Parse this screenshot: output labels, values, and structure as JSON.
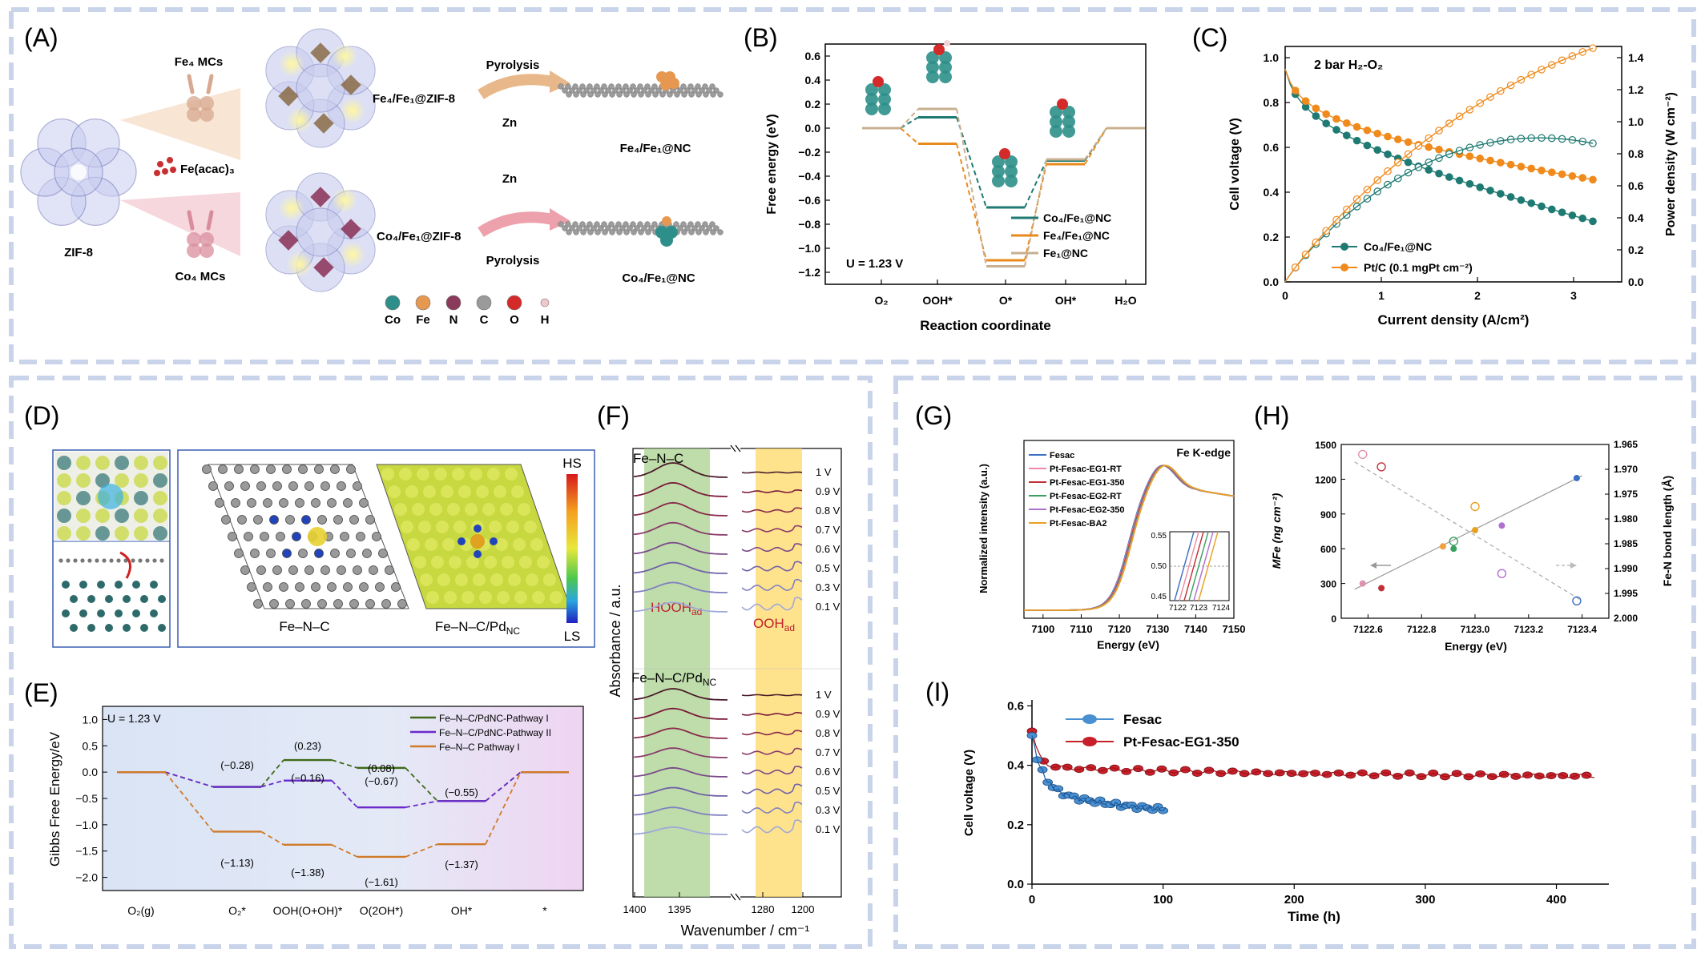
{
  "panels": [
    "(A)",
    "(B)",
    "(C)",
    "(D)",
    "(E)",
    "(F)",
    "(G)",
    "(H)",
    "(I)"
  ],
  "panelA": {
    "zif8": "ZIF-8",
    "fe4mcs": "Fe₄ MCs",
    "co4mcs": "Co₄ MCs",
    "feacac": "Fe(acac)₃",
    "fe4fe1zif": "Fe₄/Fe₁@ZIF-8",
    "co4fe1zif": "Co₄/Fe₁@ZIF-8",
    "pyrolysis": "Pyrolysis",
    "zn": "Zn",
    "fe4fe1nc": "Fe₄/Fe₁@NC",
    "co4fe1nc": "Co₄/Fe₁@NC",
    "legend": [
      {
        "label": "Co",
        "color": "#2e8f8a"
      },
      {
        "label": "Fe",
        "color": "#e69850"
      },
      {
        "label": "N",
        "color": "#8a3a5a"
      },
      {
        "label": "C",
        "color": "#9a9a9a"
      },
      {
        "label": "O",
        "color": "#d42a2a"
      },
      {
        "label": "H",
        "color": "#f2c7cc"
      }
    ]
  },
  "panelB": {
    "ylabel": "Free energy (eV)",
    "xlabel": "Reaction coordinate",
    "note": "U = 1.23 V",
    "ticks": [
      "0.6",
      "0.4",
      "0.2",
      "0.0",
      "−0.2",
      "−0.4",
      "−0.6",
      "−0.8",
      "−1.0",
      "−1.2"
    ],
    "xcats": [
      "O₂",
      "OOH*",
      "O*",
      "OH*",
      "H₂O"
    ],
    "legend": [
      "Co₄/Fe₁@NC",
      "Fe₄/Fe₁@NC",
      "Fe₁@NC"
    ]
  },
  "panelC": {
    "title": "2 bar H₂-O₂",
    "ylabel_left": "Cell voltage (V)",
    "ylabel_right": "Power density (W cm⁻²)",
    "xlabel": "Current density (A/cm²)",
    "yticks_left": [
      "0.0",
      "0.2",
      "0.4",
      "0.6",
      "0.8",
      "1.0"
    ],
    "yticks_right": [
      "0.0",
      "0.2",
      "0.4",
      "0.6",
      "0.8",
      "1.0",
      "1.2",
      "1.4"
    ],
    "xticks": [
      "0",
      "1",
      "2",
      "3"
    ],
    "legend": [
      "Co₄/Fe₁@NC",
      "Pt/C (0.1 mgPt cm⁻²)"
    ]
  },
  "panelD": {
    "label1": "Fe–N–C",
    "label2": "Fe–N–C/Pd",
    "sub2": "NC",
    "hs": "HS",
    "ls": "LS"
  },
  "panelE": {
    "ylabel": "Gibbs Free Energy/eV",
    "note": "U = 1.23 V",
    "yticks": [
      "1.0",
      "0.5",
      "0.0",
      "−0.5",
      "−1.0",
      "−1.5",
      "−2.0"
    ],
    "xcats": [
      "O₂(g)",
      "O₂*",
      "OOH(O+OH)*",
      "O(2OH*)",
      "OH*",
      "*"
    ],
    "legend": [
      "Fe–N–C/PdNC-Pathway I",
      "Fe–N–C/PdNC-Pathway II",
      "Fe–N–C Pathway I"
    ],
    "values": [
      "(−0.28)",
      "(0.23)",
      "(−0.16)",
      "(0.08)",
      "(−0.67)",
      "(−0.55)",
      "(−1.13)",
      "(−1.38)",
      "(−1.61)",
      "(−1.37)"
    ]
  },
  "panelF": {
    "label_top": "Fe–N–C",
    "label_bottom": "Fe–N–C/Pd",
    "sub_bottom": "NC",
    "hooh": "HOOH",
    "ooh": "OOH",
    "sub_ad": "ad",
    "ylabel": "Absorbance / a.u.",
    "xlabel": "Wavenumber / cm⁻¹",
    "xticks": [
      "1400",
      "1395",
      "1280",
      "1200"
    ],
    "voltages": [
      "1 V",
      "0.9 V",
      "0.8 V",
      "0.7 V",
      "0.6 V",
      "0.5 V",
      "0.3 V",
      "0.1 V"
    ]
  },
  "panelG": {
    "title": "Fe K-edge",
    "ylabel": "Normalized intensity (a.u.)",
    "xlabel": "Energy (eV)",
    "xticks": [
      "7100",
      "7110",
      "7120",
      "7130",
      "7140",
      "7150"
    ],
    "legend": [
      "Fesac",
      "Pt-Fesac-EG1-RT",
      "Pt-Fesac-EG1-350",
      "Pt-Fesac-EG2-RT",
      "Pt-Fesac-EG2-350",
      "Pt-Fesac-BA2"
    ],
    "legend_colors": [
      "#3a6fc4",
      "#f08aa8",
      "#c0303a",
      "#3aa060",
      "#b070d0",
      "#e8a020"
    ],
    "inset_yticks": [
      "0.55",
      "0.50",
      "0.45"
    ],
    "inset_xticks": [
      "7122",
      "7123",
      "7124"
    ]
  },
  "panelH": {
    "ylabel_left": "MFe (ng cm⁻²)",
    "ylabel_right": "Fe-N bond length (Å)",
    "xlabel": "Energy (eV)",
    "yticks_left": [
      "1500",
      "1200",
      "900",
      "600",
      "300",
      "0"
    ],
    "yticks_right": [
      "1.965",
      "1.970",
      "1.975",
      "1.980",
      "1.985",
      "1.990",
      "1.995",
      "2.000"
    ],
    "xticks": [
      "7122.6",
      "7122.8",
      "7123.0",
      "7123.2",
      "7123.4"
    ]
  },
  "panelI": {
    "ylabel": "Cell voltage (V)",
    "xlabel": "Time (h)",
    "yticks": [
      "0.0",
      "0.2",
      "0.4",
      "0.6"
    ],
    "xticks": [
      "0",
      "100",
      "200",
      "300",
      "400"
    ],
    "legend": [
      "Fesac",
      "Pt-Fesac-EG1-350"
    ]
  }
}
